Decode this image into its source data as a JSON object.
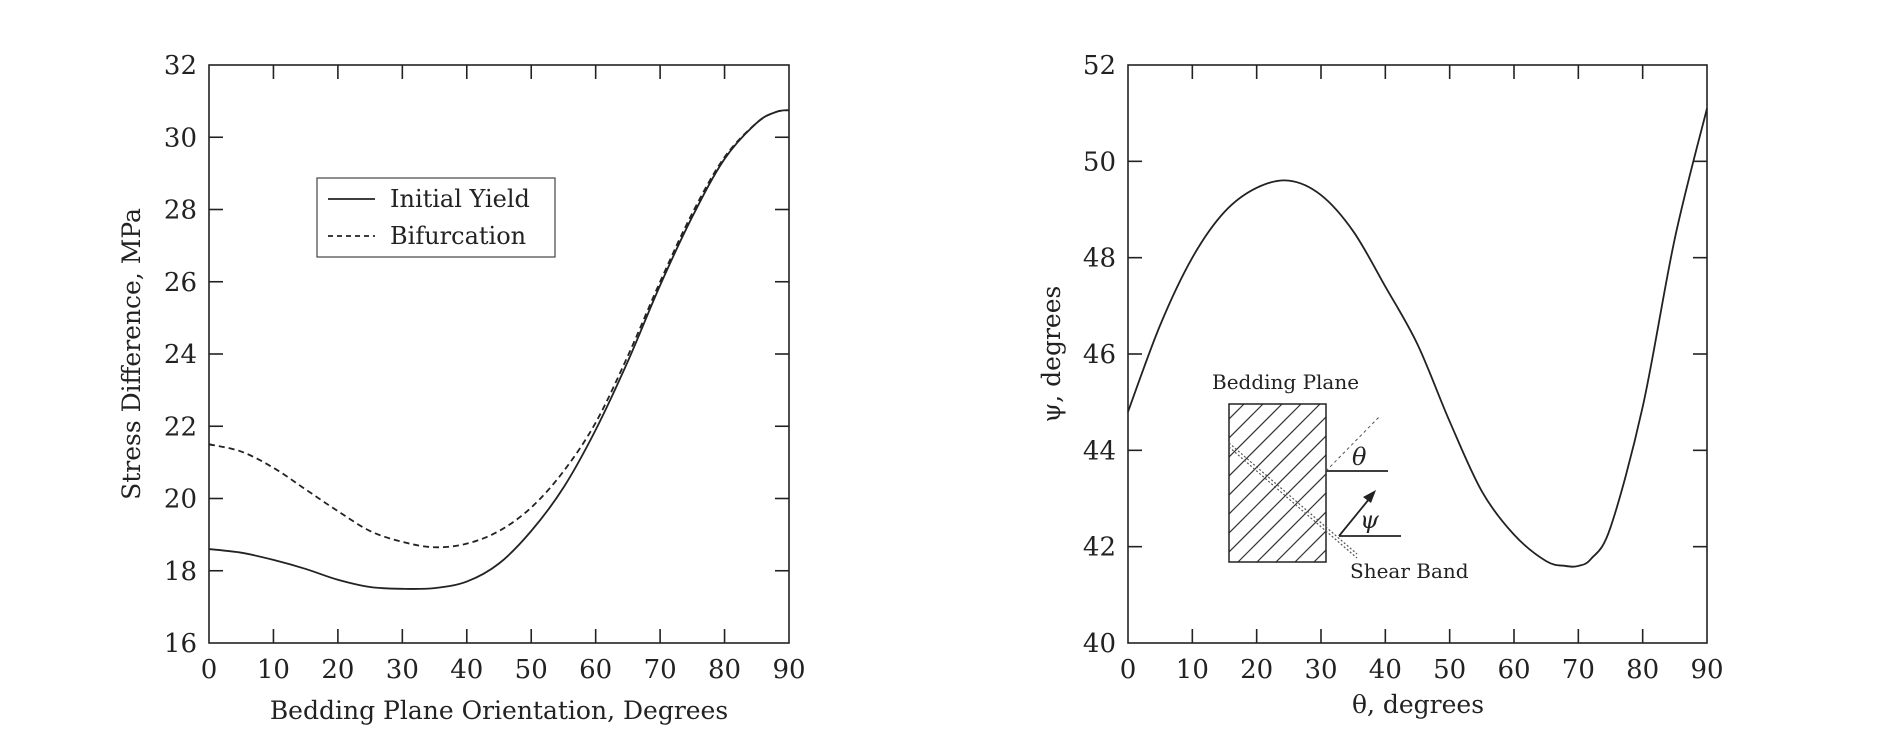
{
  "chart_data": [
    {
      "type": "line",
      "xlabel": "Bedding Plane Orientation, Degrees",
      "ylabel": "Stress Difference, MPa",
      "xlim": [
        0,
        90
      ],
      "ylim": [
        16,
        32
      ],
      "xticks": [
        "0",
        "10",
        "20",
        "30",
        "40",
        "50",
        "60",
        "70",
        "80",
        "90"
      ],
      "yticks": [
        "16",
        "18",
        "20",
        "22",
        "24",
        "26",
        "28",
        "30",
        "32"
      ],
      "grid": false,
      "legend_position": "upper-left-center",
      "x": [
        0,
        5,
        10,
        15,
        20,
        25,
        30,
        35,
        40,
        45,
        50,
        55,
        60,
        65,
        70,
        75,
        80,
        85,
        88,
        90
      ],
      "series": [
        {
          "name": "Initial Yield",
          "style": "solid",
          "values": [
            18.6,
            18.5,
            18.3,
            18.05,
            17.75,
            17.55,
            17.5,
            17.52,
            17.7,
            18.2,
            19.1,
            20.3,
            21.9,
            23.8,
            25.9,
            27.8,
            29.4,
            30.4,
            30.7,
            30.75
          ]
        },
        {
          "name": "Bifurcation",
          "style": "dashed",
          "values": [
            21.5,
            21.3,
            20.85,
            20.25,
            19.65,
            19.1,
            18.8,
            18.65,
            18.75,
            19.1,
            19.75,
            20.75,
            22.1,
            23.95,
            26.0,
            27.9,
            29.45,
            30.4,
            30.7,
            30.75
          ]
        }
      ]
    },
    {
      "type": "line",
      "xlabel": "θ, degrees",
      "ylabel": "ψ, degrees",
      "xlim": [
        0,
        90
      ],
      "ylim": [
        40,
        52
      ],
      "xticks": [
        "0",
        "10",
        "20",
        "30",
        "40",
        "50",
        "60",
        "70",
        "80",
        "90"
      ],
      "yticks": [
        "40",
        "42",
        "44",
        "46",
        "48",
        "50",
        "52"
      ],
      "grid": false,
      "x": [
        0,
        5,
        10,
        15,
        20,
        25,
        30,
        35,
        40,
        45,
        50,
        55,
        60,
        65,
        68,
        70,
        72,
        75,
        80,
        85,
        90
      ],
      "series": [
        {
          "style": "solid",
          "values": [
            44.8,
            46.6,
            48.0,
            48.95,
            49.45,
            49.6,
            49.3,
            48.55,
            47.4,
            46.2,
            44.6,
            43.15,
            42.25,
            41.7,
            41.6,
            41.6,
            41.75,
            42.4,
            44.9,
            48.4,
            51.1
          ]
        }
      ],
      "inset": {
        "bedding_plane_label": "Bedding Plane",
        "shear_band_label": "Shear Band",
        "theta_symbol": "θ",
        "psi_symbol": "ψ"
      }
    }
  ]
}
